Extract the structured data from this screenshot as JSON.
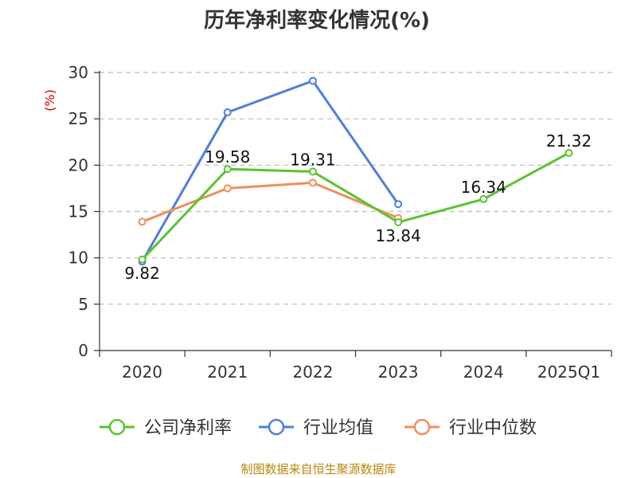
{
  "chart_data": {
    "type": "line",
    "title": "历年净利率变化情况(%)",
    "ylabel": "(%)",
    "categories": [
      "2020",
      "2021",
      "2022",
      "2023",
      "2024",
      "2025Q1"
    ],
    "ylim": [
      0,
      30
    ],
    "yticks": [
      0,
      5,
      10,
      15,
      20,
      25,
      30
    ],
    "grid": true,
    "legend_position": "bottom",
    "series": [
      {
        "name": "公司净利率",
        "color": "#5bc42f",
        "values": [
          9.82,
          19.58,
          19.31,
          13.84,
          16.34,
          21.32
        ],
        "show_labels": true
      },
      {
        "name": "行业均值",
        "color": "#4e7fdc",
        "values": [
          9.6,
          25.7,
          29.1,
          15.8,
          null,
          null
        ],
        "show_labels": false
      },
      {
        "name": "行业中位数",
        "color": "#f08f5a",
        "values": [
          13.9,
          17.5,
          18.1,
          14.3,
          null,
          null
        ],
        "show_labels": false
      }
    ],
    "data_labels": [
      "9.82",
      "19.58",
      "19.31",
      "13.84",
      "16.34",
      "21.32"
    ]
  },
  "source": "制图数据来自恒生聚源数据库"
}
